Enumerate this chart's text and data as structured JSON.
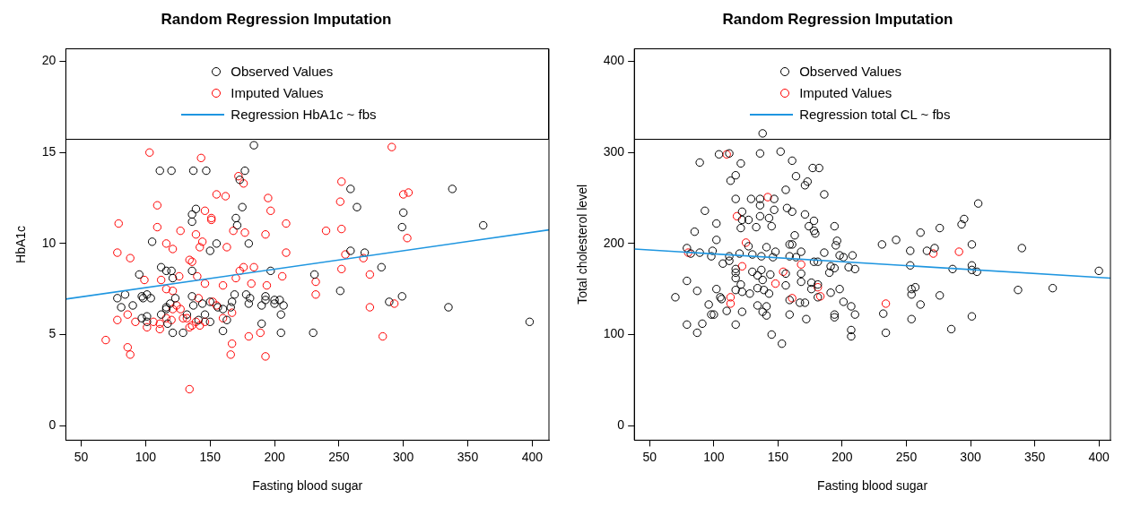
{
  "chart_data": [
    {
      "type": "scatter",
      "title": "Random Regression Imputation",
      "xlabel": "Fasting blood sugar",
      "ylabel": "HbA1c",
      "xlim": [
        38,
        413
      ],
      "ylim": [
        -0.8,
        20.7
      ],
      "xticks": [
        50,
        100,
        150,
        200,
        250,
        300,
        350,
        400
      ],
      "yticks": [
        0,
        5,
        10,
        15,
        20
      ],
      "grid": false,
      "legend": "top",
      "marker": "circle",
      "series": [
        {
          "name": "Observed Values",
          "color": "#000000",
          "x": [
            184,
            111,
            120,
            137,
            147,
            177,
            173,
            259,
            338,
            175,
            264,
            139,
            136,
            136,
            300,
            299,
            362,
            170,
            171,
            105,
            155,
            180,
            150,
            259,
            270,
            283,
            112,
            116,
            120,
            121,
            95,
            136,
            197,
            231,
            251,
            299,
            289,
            335,
            398,
            78,
            84,
            81,
            90,
            97,
            101,
            98,
            104,
            97,
            101,
            101,
            112,
            117,
            116,
            119,
            123,
            116,
            121,
            129,
            132,
            136,
            137,
            141,
            144,
            146,
            150,
            150,
            156,
            160,
            160,
            163,
            166,
            167,
            169,
            178,
            180,
            181,
            190,
            190,
            193,
            193,
            200,
            200,
            204,
            207,
            205,
            205,
            230
          ],
          "values": [
            15.4,
            14.0,
            14.0,
            14.0,
            14.0,
            14.0,
            13.5,
            13.0,
            13.0,
            12.0,
            12.0,
            11.9,
            11.6,
            11.2,
            11.7,
            10.9,
            11.0,
            11.4,
            11.0,
            10.1,
            10.0,
            10.0,
            9.6,
            9.6,
            9.5,
            8.7,
            8.7,
            8.5,
            8.5,
            8.1,
            8.3,
            8.5,
            8.5,
            8.3,
            7.4,
            7.1,
            6.8,
            6.5,
            5.7,
            7.0,
            7.2,
            6.5,
            6.6,
            7.1,
            7.2,
            7.0,
            7.0,
            5.9,
            6.0,
            5.7,
            6.1,
            5.6,
            6.5,
            6.7,
            7.0,
            6.4,
            5.1,
            5.1,
            6.1,
            7.1,
            6.6,
            5.8,
            6.7,
            6.1,
            6.8,
            5.7,
            6.5,
            6.4,
            5.2,
            5.8,
            6.5,
            6.8,
            7.2,
            7.2,
            6.7,
            7.0,
            6.6,
            5.6,
            7.1,
            6.9,
            6.9,
            6.7,
            6.9,
            6.6,
            6.1,
            5.1,
            5.1
          ]
        },
        {
          "name": "Imputed Values",
          "color": "#ff0000",
          "x": [
            103,
            291,
            143,
            172,
            176,
            252,
            251,
            300,
            304,
            155,
            162,
            195,
            109,
            197,
            146,
            151,
            151,
            79,
            109,
            209,
            127,
            168,
            177,
            240,
            252,
            303,
            139,
            144,
            142,
            193,
            116,
            121,
            163,
            78,
            88,
            134,
            136,
            209,
            255,
            269,
            176,
            184,
            173,
            252,
            274,
            140,
            126,
            99,
            112,
            206,
            170,
            146,
            160,
            182,
            194,
            232,
            232,
            116,
            121,
            141,
            152,
            155,
            124,
            121,
            127,
            86,
            78,
            92,
            106,
            111,
            111,
            101,
            120,
            116,
            129,
            132,
            134,
            136,
            139,
            142,
            146,
            160,
            167,
            180,
            189,
            274,
            293,
            284,
            69,
            86,
            88,
            167,
            166,
            193,
            134
          ],
          "values": [
            15.0,
            15.3,
            14.7,
            13.7,
            13.3,
            13.4,
            12.3,
            12.7,
            12.8,
            12.7,
            12.6,
            12.5,
            12.1,
            11.8,
            11.8,
            11.4,
            11.3,
            11.1,
            10.9,
            11.1,
            10.7,
            10.7,
            10.6,
            10.7,
            10.8,
            10.3,
            10.5,
            10.1,
            9.8,
            10.5,
            10.0,
            9.7,
            9.8,
            9.5,
            9.2,
            9.1,
            9.0,
            9.5,
            9.4,
            9.2,
            8.7,
            8.7,
            8.5,
            8.6,
            8.3,
            8.2,
            8.2,
            8.0,
            8.0,
            8.2,
            8.1,
            7.8,
            7.7,
            7.8,
            7.7,
            7.9,
            7.2,
            7.5,
            7.4,
            7.0,
            6.8,
            6.6,
            6.6,
            6.4,
            6.4,
            6.1,
            5.8,
            5.7,
            5.7,
            5.6,
            5.3,
            5.4,
            5.8,
            5.9,
            5.9,
            5.9,
            5.4,
            5.5,
            5.7,
            5.5,
            5.7,
            5.9,
            6.2,
            4.9,
            5.1,
            6.5,
            6.7,
            4.9,
            4.7,
            4.3,
            3.9,
            4.5,
            3.9,
            3.8,
            2.0
          ]
        },
        {
          "name": "Regression HbA1c ~ fbs",
          "type": "line",
          "marker": "none",
          "color": "#1f96e0",
          "x": [
            38,
            413
          ],
          "values": [
            6.95,
            10.75
          ]
        }
      ]
    },
    {
      "type": "scatter",
      "title": "Random Regression Imputation",
      "xlabel": "Fasting blood sugar",
      "ylabel": "Total cholesterol level",
      "xlim": [
        38,
        409
      ],
      "ylim": [
        -16,
        414
      ],
      "xticks": [
        50,
        100,
        150,
        200,
        250,
        300,
        350,
        400
      ],
      "yticks": [
        0,
        100,
        200,
        300,
        400
      ],
      "grid": false,
      "legend": "top",
      "marker": "circle",
      "series": [
        {
          "name": "Observed Values",
          "color": "#000000",
          "x": [
            138,
            89,
            104,
            112,
            121,
            136,
            152,
            161,
            177,
            182,
            164,
            173,
            171,
            117,
            113,
            156,
            186,
            117,
            129,
            136,
            147,
            136,
            147,
            157,
            161,
            171,
            93,
            102,
            122,
            122,
            121,
            127,
            133,
            136,
            143,
            145,
            178,
            174,
            178,
            179,
            194,
            85,
            102,
            163,
            196,
            195,
            161,
            159,
            127,
            141,
            231,
            242,
            261,
            276,
            293,
            295,
            306,
            301,
            340,
            400,
            337,
            364,
            253,
            266,
            272,
            253,
            286,
            301,
            301,
            305,
            254,
            257,
            254,
            276,
            261,
            254,
            301,
            285,
            232,
            234,
            207,
            207,
            210,
            207,
            194,
            194,
            201,
            191,
            198,
            172,
            167,
            171,
            159,
            159,
            145,
            153,
            141,
            138,
            141,
            134,
            122,
            110,
            117,
            98,
            100,
            91,
            87,
            79,
            96,
            70,
            87,
            79,
            102,
            105,
            106,
            117,
            121,
            122,
            128,
            134,
            139,
            143,
            156,
            168,
            176,
            176,
            181,
            181,
            117,
            117,
            117,
            130,
            134,
            137,
            138,
            144,
            156,
            168,
            190,
            191,
            194,
            205,
            210,
            178,
            181,
            107,
            112,
            112,
            98,
            99,
            89,
            79,
            82,
            120,
            130,
            137,
            146,
            148,
            159,
            164,
            168,
            186,
            198,
            201,
            208
          ],
          "values": [
            321,
            289,
            298,
            299,
            288,
            299,
            301,
            291,
            283,
            283,
            274,
            268,
            264,
            275,
            269,
            259,
            254,
            249,
            249,
            249,
            249,
            242,
            237,
            239,
            235,
            232,
            236,
            222,
            235,
            226,
            217,
            226,
            218,
            230,
            228,
            219,
            225,
            219,
            214,
            211,
            219,
            213,
            204,
            209,
            203,
            198,
            199,
            199,
            197,
            196,
            199,
            204,
            212,
            217,
            221,
            227,
            244,
            199,
            195,
            170,
            149,
            151,
            192,
            192,
            195,
            176,
            172,
            176,
            171,
            169,
            150,
            152,
            144,
            143,
            133,
            117,
            120,
            106,
            123,
            102,
            105,
            98,
            122,
            131,
            122,
            119,
            136,
            146,
            150,
            117,
            135,
            135,
            122,
            138,
            100,
            90,
            131,
            125,
            121,
            132,
            125,
            126,
            111,
            122,
            122,
            112,
            102,
            111,
            133,
            141,
            148,
            159,
            150,
            141,
            139,
            149,
            155,
            147,
            145,
            151,
            149,
            145,
            154,
            158,
            157,
            150,
            155,
            141,
            162,
            168,
            172,
            169,
            165,
            171,
            160,
            166,
            167,
            167,
            168,
            175,
            173,
            174,
            172,
            180,
            180,
            178,
            181,
            186,
            186,
            192,
            190,
            195,
            189,
            189,
            188,
            186,
            185,
            191,
            186,
            185,
            191,
            190,
            187,
            185,
            187
          ]
        },
        {
          "name": "Imputed Values",
          "color": "#ff0000",
          "x": [
            110,
            142,
            118,
            125,
            80,
            122,
            168,
            154,
            148,
            181,
            183,
            161,
            113,
            113,
            234,
            271,
            291
          ],
          "values": [
            298,
            251,
            230,
            201,
            190,
            175,
            177,
            169,
            156,
            152,
            142,
            140,
            141,
            134,
            134,
            189,
            191
          ]
        },
        {
          "name": "Regression total CL ~ fbs",
          "type": "line",
          "marker": "none",
          "color": "#1f96e0",
          "x": [
            38,
            409
          ],
          "values": [
            194,
            162
          ]
        }
      ]
    }
  ]
}
